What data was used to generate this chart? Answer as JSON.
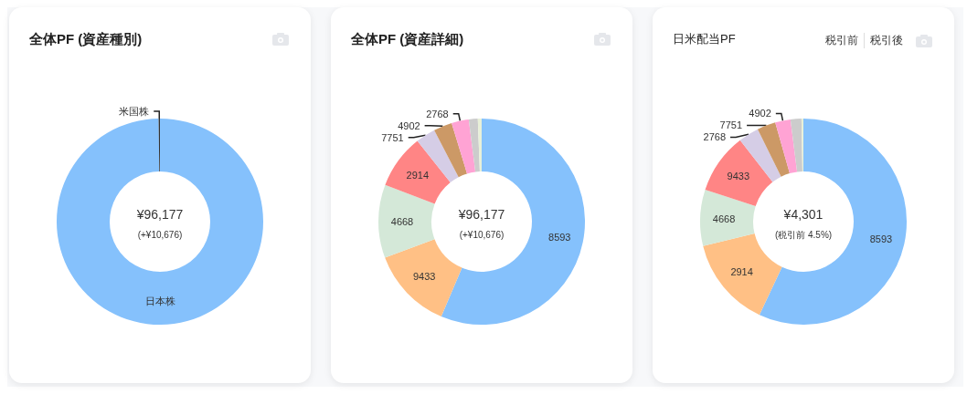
{
  "chart_data": [
    {
      "type": "donut",
      "title": "全体PF (資産種別)",
      "categories": [
        "日本株",
        "米国株"
      ],
      "values": [
        99.8,
        0.2
      ],
      "colors": [
        "#85c1fc",
        "#333333"
      ],
      "annotations": [
        "¥96,177",
        "(+¥10,676)"
      ]
    },
    {
      "type": "donut",
      "title": "全体PF (資産詳細)",
      "categories": [
        "8593",
        "9433",
        "4668",
        "2914",
        "7751",
        "4902",
        "2768",
        null,
        null
      ],
      "values": [
        56.4,
        12.9,
        11.5,
        8.5,
        3.1,
        2.9,
        2.7,
        1.4,
        0.6
      ],
      "colors": [
        "#85c1fc",
        "#ffc085",
        "#d4e8d8",
        "#ff8585",
        "#d5cde6",
        "#cc9966",
        "#ffa3d4",
        "#cccccc",
        "#e8f0d8"
      ],
      "annotations": [
        "¥96,177",
        "(+¥10,676)"
      ]
    },
    {
      "type": "donut",
      "title": "日米配当PF",
      "categories": [
        "8593",
        "2914",
        "4668",
        "9433",
        "2768",
        "7751",
        "4902",
        null,
        null
      ],
      "values": [
        57.0,
        14.2,
        8.8,
        9.5,
        3.2,
        2.9,
        2.4,
        1.7,
        0.3
      ],
      "colors": [
        "#85c1fc",
        "#ffc085",
        "#d4e8d8",
        "#ff8585",
        "#d5cde6",
        "#cc9966",
        "#ffa3d4",
        "#cccccc",
        "#e8f0d8"
      ],
      "annotations": [
        "¥4,301",
        "(税引前 4.5%)",
        "税引前",
        "税引後"
      ]
    }
  ]
}
